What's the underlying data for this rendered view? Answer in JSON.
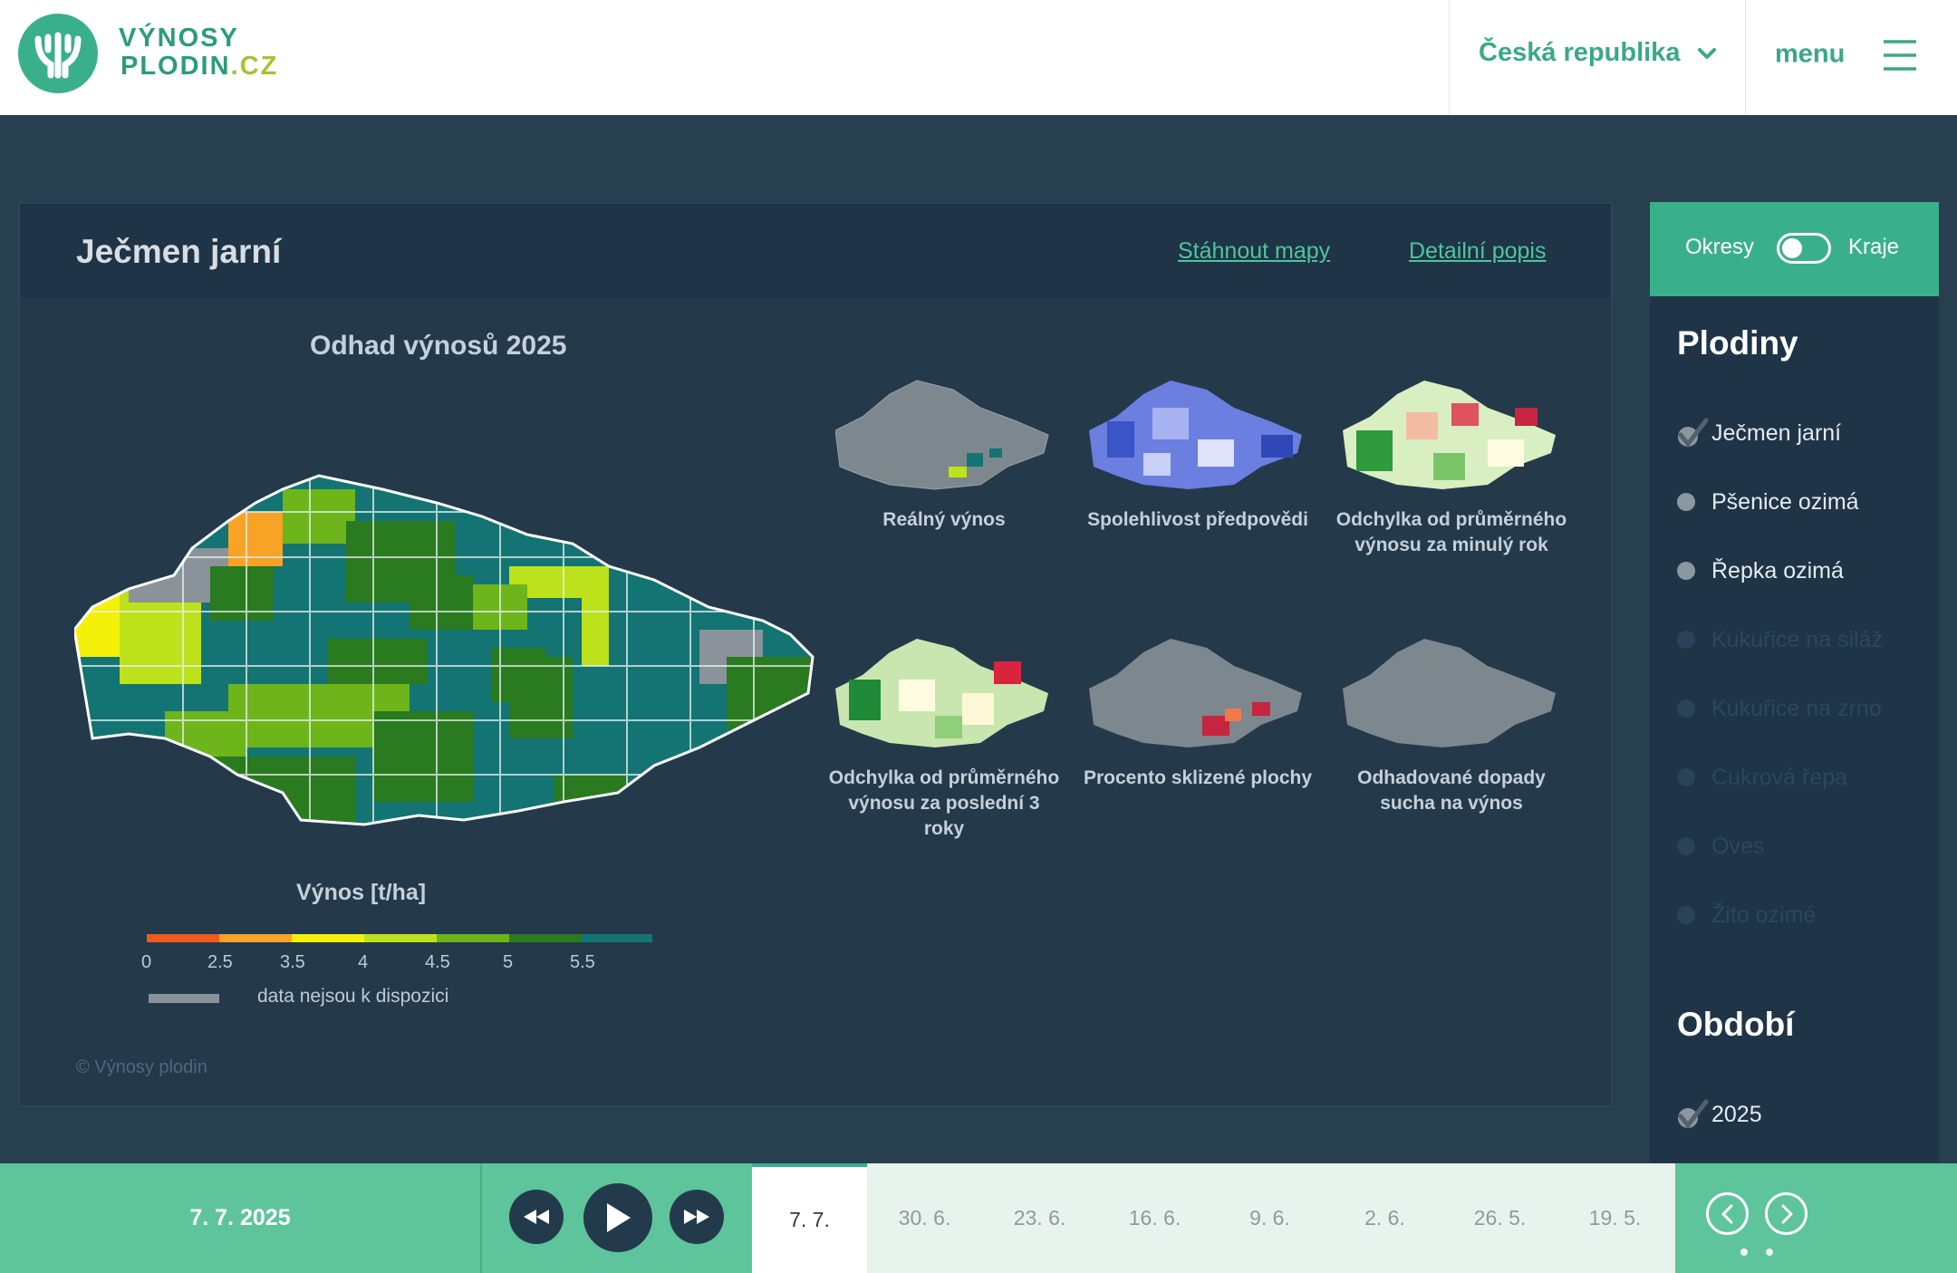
{
  "header": {
    "logo_line1": "VÝNOSY",
    "logo_line2_main": "PLODIN",
    "logo_line2_suffix": ".CZ",
    "logo_icon": "wheat-logo-icon",
    "region_label": "Česká republika",
    "region_icon": "chevron-down-icon",
    "menu_label": "menu",
    "menu_icon": "hamburger-icon"
  },
  "panel": {
    "crop_title": "Ječmen jarní",
    "download_link": "Stáhnout mapy",
    "detail_link": "Detailní popis",
    "main_map_title": "Odhad výnosů 2025",
    "thumbnails": [
      {
        "caption": "Reálný výnos"
      },
      {
        "caption": "Spolehlivost předpovědi"
      },
      {
        "caption": "Odchylka od průměrného výnosu za minulý rok"
      },
      {
        "caption": "Odchylka od průměrného výnosu za poslední 3 roky"
      },
      {
        "caption": "Procento sklizené plochy"
      },
      {
        "caption": "Odhadované dopady sucha na výnos"
      }
    ],
    "legend": {
      "title": "Výnos [t/ha]",
      "colors": [
        "#ef5a1d",
        "#f8a226",
        "#f5f00a",
        "#bde21b",
        "#6db51a",
        "#2a7a1f",
        "#137473"
      ],
      "ticks": [
        "0",
        "2.5",
        "3.5",
        "4",
        "4.5",
        "5",
        "5.5"
      ],
      "nodata_label": "data nejsou k dispozici"
    },
    "copyright": "© Výnosy plodin"
  },
  "sidebar": {
    "toggle_left": "Okresy",
    "toggle_right": "Kraje",
    "crops_heading": "Plodiny",
    "crops": [
      {
        "label": "Ječmen jarní",
        "state": "selected"
      },
      {
        "label": "Pšenice ozimá",
        "state": "available"
      },
      {
        "label": "Řepka ozimá",
        "state": "available"
      },
      {
        "label": "Kukuřice na siláž",
        "state": "disabled"
      },
      {
        "label": "Kukuřice na zrno",
        "state": "disabled"
      },
      {
        "label": "Cukrová řepa",
        "state": "disabled"
      },
      {
        "label": "Oves",
        "state": "disabled"
      },
      {
        "label": "Žito ozimé",
        "state": "disabled"
      }
    ],
    "period_heading": "Období",
    "period": [
      {
        "label": "2025",
        "state": "selected"
      }
    ]
  },
  "bottom": {
    "current_date": "7. 7. 2025",
    "controls": [
      "rewind-icon",
      "play-icon",
      "fast-forward-icon"
    ],
    "timeline": [
      "7. 7.",
      "30. 6.",
      "23. 6.",
      "16. 6.",
      "9. 6.",
      "2. 6.",
      "26. 5.",
      "19. 5."
    ],
    "active_index": 0,
    "pager_pages": 2,
    "pager_active": 0
  },
  "colors": {
    "brand_green": "#3ab08a",
    "accent_lime": "#a6c234",
    "background": "#283f50",
    "panel": "#243a4b"
  }
}
